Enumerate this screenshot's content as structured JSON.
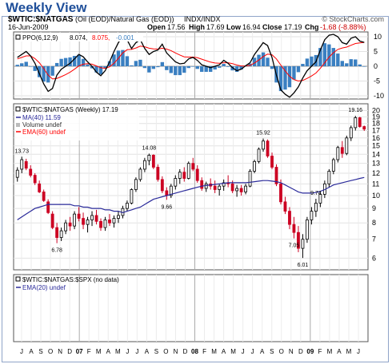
{
  "header": {
    "view_title": "Weekly View",
    "symbol": "$WTIC:$NATGAS",
    "description": "(Oil (EOD)/Natural Gas (EOD))",
    "exchange": "INDX/INDX",
    "watermark": "© StockCharts.com",
    "date": "16-Jun-2009",
    "quote": {
      "open_label": "Open",
      "open": "17.56",
      "high_label": "High",
      "high": "17.69",
      "low_label": "Low",
      "low": "16.94",
      "close_label": "Close",
      "close": "17.19",
      "chg_label": "Chg",
      "chg": "-1.68 (-8.88%)"
    }
  },
  "ppo_panel": {
    "label_prefix": "PPO(6,12,9)",
    "ppo_value": "8.074,",
    "signal_value": "8.075,",
    "hist_value": "-0.001",
    "colors": {
      "ppo": "#000000",
      "signal": "#ff0000",
      "hist": "#3a7fc1"
    }
  },
  "price_panel": {
    "label_main": "$WTIC:$NATGAS (Weekly) 17.19",
    "legend": [
      {
        "text": "MA(40) 11.59",
        "color": "#2a2a9a"
      },
      {
        "text": "Volume undef",
        "color": "#333333"
      },
      {
        "text": "EMA(60) undef",
        "color": "#ff0000"
      }
    ],
    "annotations": [
      "13.73",
      "6.78",
      "14.08",
      "9.66",
      "15.92",
      "9.74",
      "7.05",
      "6.01",
      "19.16"
    ],
    "colors": {
      "up": "#000000",
      "down": "#cc0022",
      "ma": "#2a2a9a"
    }
  },
  "relative_panel": {
    "label_main": "$WTIC:$NATGAS:$SPX (no data)",
    "legend": [
      {
        "text": "EMA(20) undef",
        "color": "#2a2a9a"
      }
    ]
  },
  "x_axis_labels": [
    "J",
    "A",
    "S",
    "O",
    "N",
    "D",
    "07",
    "F",
    "M",
    "A",
    "M",
    "J",
    "J",
    "A",
    "S",
    "O",
    "N",
    "D",
    "08",
    "F",
    "M",
    "A",
    "M",
    "J",
    "J",
    "A",
    "S",
    "O",
    "N",
    "D",
    "09",
    "F",
    "M",
    "A",
    "M",
    "J"
  ],
  "chart_data": [
    {
      "type": "line",
      "title": "PPO(6,12,9)",
      "ylim": [
        -10,
        10
      ],
      "yticks": [
        10,
        5,
        0,
        -5,
        -10
      ],
      "series": [
        {
          "name": "PPO",
          "values": [
            3,
            4,
            5,
            3.5,
            1,
            -2.5,
            -6,
            -8.5,
            -7.5,
            -3,
            -1,
            0,
            1,
            2.5,
            4,
            3.2,
            1.5,
            0,
            -2,
            -3.2,
            -1.5,
            1.5,
            5,
            8,
            10,
            9,
            6,
            8,
            9,
            6,
            4,
            5,
            5.5,
            7.5,
            4.5,
            3,
            1.5,
            0.8,
            1,
            2.5,
            3,
            2,
            0.5,
            0,
            -0.5,
            0,
            0.5,
            2,
            1,
            -0.5,
            -1.5,
            -1,
            0.2,
            1.2,
            4,
            6,
            8,
            7,
            3,
            -3,
            -8,
            -9.5,
            -10.5,
            -9,
            -7,
            -4,
            -1.5,
            0,
            1.5,
            5.5,
            9,
            10.5,
            10.8,
            10,
            8,
            7.5,
            9.5,
            10,
            8.5,
            8.074
          ]
        },
        {
          "name": "Signal",
          "values": [
            2.5,
            3,
            3.5,
            3.5,
            2.6,
            1.2,
            -0.8,
            -3,
            -4.3,
            -4.1,
            -3.5,
            -2.8,
            -2,
            -1,
            0.1,
            0.7,
            0.9,
            0.7,
            0.1,
            -0.5,
            -0.7,
            -0.2,
            1,
            2.7,
            4.5,
            5.6,
            5.7,
            6.2,
            6.8,
            6.6,
            6.1,
            5.9,
            5.8,
            6.1,
            5.8,
            5.3,
            4.5,
            3.8,
            3.2,
            3.1,
            3.1,
            2.9,
            2.4,
            1.9,
            1.4,
            1.1,
            1,
            1.2,
            1.2,
            0.9,
            0.4,
            0.1,
            0.1,
            0.3,
            1.1,
            2.1,
            3.3,
            4.1,
            3.9,
            2.5,
            0.4,
            -1.6,
            -3.4,
            -4.5,
            -5,
            -4.8,
            -4.1,
            -3.3,
            -2.3,
            -0.7,
            1.2,
            3.1,
            4.6,
            5.7,
            6.2,
            6.5,
            7.1,
            7.7,
            7.9,
            8.075
          ]
        },
        {
          "name": "Histogram",
          "values": [
            0.5,
            1,
            1.5,
            0,
            -1.6,
            -3.7,
            -5.2,
            -5.5,
            -3.2,
            1.1,
            2.5,
            2.8,
            3,
            3.5,
            3.9,
            2.5,
            0.6,
            -0.7,
            -2.1,
            -2.7,
            -0.8,
            1.7,
            4,
            5.3,
            5.5,
            3.4,
            0.3,
            1.8,
            2.2,
            -0.6,
            -2.1,
            -0.9,
            -0.3,
            1.4,
            -1.3,
            -2.3,
            -3,
            -3,
            -2.2,
            -0.6,
            -0.1,
            -0.9,
            -1.9,
            -1.9,
            -1.9,
            -1.1,
            -0.5,
            0.8,
            -0.2,
            -1.4,
            -1.9,
            -1.1,
            0.1,
            0.9,
            2.9,
            3.9,
            4.7,
            2.9,
            -0.9,
            -5.5,
            -8.4,
            -7.9,
            -7.1,
            -4.5,
            -2,
            0.8,
            2.6,
            3.3,
            3.8,
            6.2,
            7.8,
            7.4,
            6.2,
            4.3,
            1.8,
            1,
            2.4,
            2.3,
            0.6,
            -0.001
          ]
        }
      ]
    },
    {
      "type": "candlestick",
      "title": "$WTIC:$NATGAS (Weekly) 17.19",
      "scale": "log",
      "ylim": [
        5.6,
        20.6
      ],
      "yticks": [
        20,
        19,
        18,
        17,
        16,
        15,
        14,
        13,
        12,
        11,
        10,
        9,
        8,
        7,
        6
      ],
      "candles_ohlc": [
        [
          11.6,
          12.6,
          11.2,
          12.3
        ],
        [
          12.4,
          13.73,
          12.0,
          13.4
        ],
        [
          13.2,
          13.5,
          12.3,
          12.5
        ],
        [
          12.4,
          12.8,
          11.6,
          11.8
        ],
        [
          11.8,
          12.0,
          10.9,
          11.1
        ],
        [
          11.0,
          11.3,
          10.2,
          10.3
        ],
        [
          10.3,
          10.5,
          9.5,
          9.6
        ],
        [
          9.5,
          9.7,
          8.6,
          8.7
        ],
        [
          8.6,
          8.8,
          7.6,
          7.7
        ],
        [
          7.7,
          8.0,
          6.78,
          7.1
        ],
        [
          7.1,
          7.7,
          6.9,
          7.5
        ],
        [
          7.5,
          8.2,
          7.3,
          8.0
        ],
        [
          8.0,
          8.4,
          7.5,
          7.8
        ],
        [
          7.8,
          8.8,
          7.6,
          8.6
        ],
        [
          8.6,
          9.1,
          8.1,
          8.3
        ],
        [
          8.3,
          8.7,
          7.6,
          7.9
        ],
        [
          7.9,
          8.4,
          7.4,
          8.2
        ],
        [
          8.2,
          8.8,
          7.8,
          8.5
        ],
        [
          8.5,
          8.9,
          7.9,
          8.1
        ],
        [
          8.1,
          8.3,
          7.5,
          7.7
        ],
        [
          7.7,
          8.4,
          7.5,
          8.2
        ],
        [
          8.2,
          8.6,
          7.8,
          8.0
        ],
        [
          8.0,
          8.5,
          7.7,
          8.3
        ],
        [
          8.3,
          8.8,
          8.0,
          8.5
        ],
        [
          8.5,
          9.2,
          8.3,
          9.0
        ],
        [
          9.0,
          9.6,
          8.8,
          9.4
        ],
        [
          9.4,
          10.6,
          9.3,
          10.5
        ],
        [
          10.5,
          11.6,
          10.3,
          11.4
        ],
        [
          11.4,
          12.6,
          11.2,
          12.4
        ],
        [
          12.4,
          13.6,
          12.1,
          13.3
        ],
        [
          13.3,
          14.08,
          12.8,
          13.9
        ],
        [
          13.9,
          14.0,
          12.4,
          12.6
        ],
        [
          12.6,
          12.9,
          11.2,
          11.4
        ],
        [
          11.4,
          11.7,
          10.2,
          10.4
        ],
        [
          10.4,
          10.7,
          9.66,
          10.0
        ],
        [
          10.0,
          11.0,
          9.8,
          10.8
        ],
        [
          10.8,
          11.8,
          10.5,
          11.5
        ],
        [
          11.5,
          12.4,
          11.0,
          12.1
        ],
        [
          12.1,
          12.6,
          11.2,
          11.5
        ],
        [
          11.5,
          13.2,
          11.4,
          13.0
        ],
        [
          13.0,
          13.6,
          12.2,
          12.4
        ],
        [
          12.4,
          12.8,
          11.1,
          11.3
        ],
        [
          11.3,
          11.6,
          10.4,
          10.6
        ],
        [
          10.6,
          11.2,
          10.3,
          11.0
        ],
        [
          11.0,
          11.5,
          10.5,
          10.8
        ],
        [
          10.8,
          11.3,
          10.2,
          10.5
        ],
        [
          10.5,
          11.0,
          10.0,
          10.8
        ],
        [
          10.8,
          11.4,
          10.4,
          11.1
        ],
        [
          11.1,
          11.8,
          10.7,
          11.0
        ],
        [
          11.0,
          11.3,
          10.2,
          10.4
        ],
        [
          10.4,
          10.9,
          9.9,
          10.6
        ],
        [
          10.6,
          10.9,
          10.0,
          10.3
        ],
        [
          10.3,
          11.0,
          10.1,
          10.8
        ],
        [
          10.8,
          12.4,
          10.7,
          12.2
        ],
        [
          12.2,
          13.4,
          12.0,
          13.2
        ],
        [
          13.2,
          14.8,
          13.0,
          14.6
        ],
        [
          14.6,
          15.92,
          14.3,
          15.6
        ],
        [
          15.6,
          15.8,
          13.6,
          13.8
        ],
        [
          13.8,
          14.2,
          12.4,
          12.6
        ],
        [
          12.6,
          12.9,
          10.8,
          11.0
        ],
        [
          11.0,
          11.4,
          9.3,
          9.5
        ],
        [
          9.5,
          9.9,
          8.6,
          8.8
        ],
        [
          8.8,
          9.1,
          7.6,
          7.9
        ],
        [
          7.9,
          8.4,
          7.05,
          7.4
        ],
        [
          7.4,
          7.8,
          6.3,
          6.5
        ],
        [
          6.5,
          7.3,
          6.01,
          7.0
        ],
        [
          7.0,
          8.4,
          6.8,
          8.2
        ],
        [
          8.2,
          9.1,
          7.9,
          8.8
        ],
        [
          8.8,
          9.74,
          8.4,
          9.4
        ],
        [
          9.4,
          10.3,
          9.1,
          10.1
        ],
        [
          10.1,
          11.3,
          9.8,
          11.0
        ],
        [
          11.0,
          12.4,
          10.7,
          12.2
        ],
        [
          12.2,
          13.6,
          11.9,
          13.4
        ],
        [
          13.4,
          15.0,
          13.1,
          14.8
        ],
        [
          14.8,
          15.6,
          13.6,
          14.1
        ],
        [
          14.1,
          16.3,
          13.9,
          16.0
        ],
        [
          16.0,
          17.7,
          15.6,
          17.4
        ],
        [
          17.4,
          19.16,
          17.0,
          18.87
        ],
        [
          18.87,
          19.0,
          17.4,
          17.56
        ],
        [
          17.56,
          17.69,
          16.94,
          17.19
        ]
      ],
      "series": [
        {
          "name": "MA(40)",
          "values": [
            8.2,
            8.4,
            8.6,
            8.8,
            9.0,
            9.1,
            9.2,
            9.3,
            9.3,
            9.3,
            9.3,
            9.3,
            9.3,
            9.2,
            9.2,
            9.1,
            9.1,
            9.0,
            9.0,
            9.0,
            8.9,
            8.9,
            8.8,
            8.8,
            8.7,
            8.8,
            8.9,
            9.0,
            9.1,
            9.3,
            9.5,
            9.7,
            9.8,
            9.9,
            10.0,
            10.1,
            10.2,
            10.3,
            10.4,
            10.5,
            10.6,
            10.7,
            10.8,
            10.85,
            10.9,
            10.95,
            11.0,
            11.05,
            11.1,
            11.1,
            11.1,
            11.1,
            11.1,
            11.15,
            11.2,
            11.25,
            11.3,
            11.3,
            11.25,
            11.2,
            11.1,
            10.9,
            10.7,
            10.5,
            10.3,
            10.2,
            10.2,
            10.2,
            10.25,
            10.35,
            10.5,
            10.7,
            10.9,
            11.0,
            11.1,
            11.2,
            11.3,
            11.4,
            11.5,
            11.59
          ]
        }
      ]
    }
  ]
}
